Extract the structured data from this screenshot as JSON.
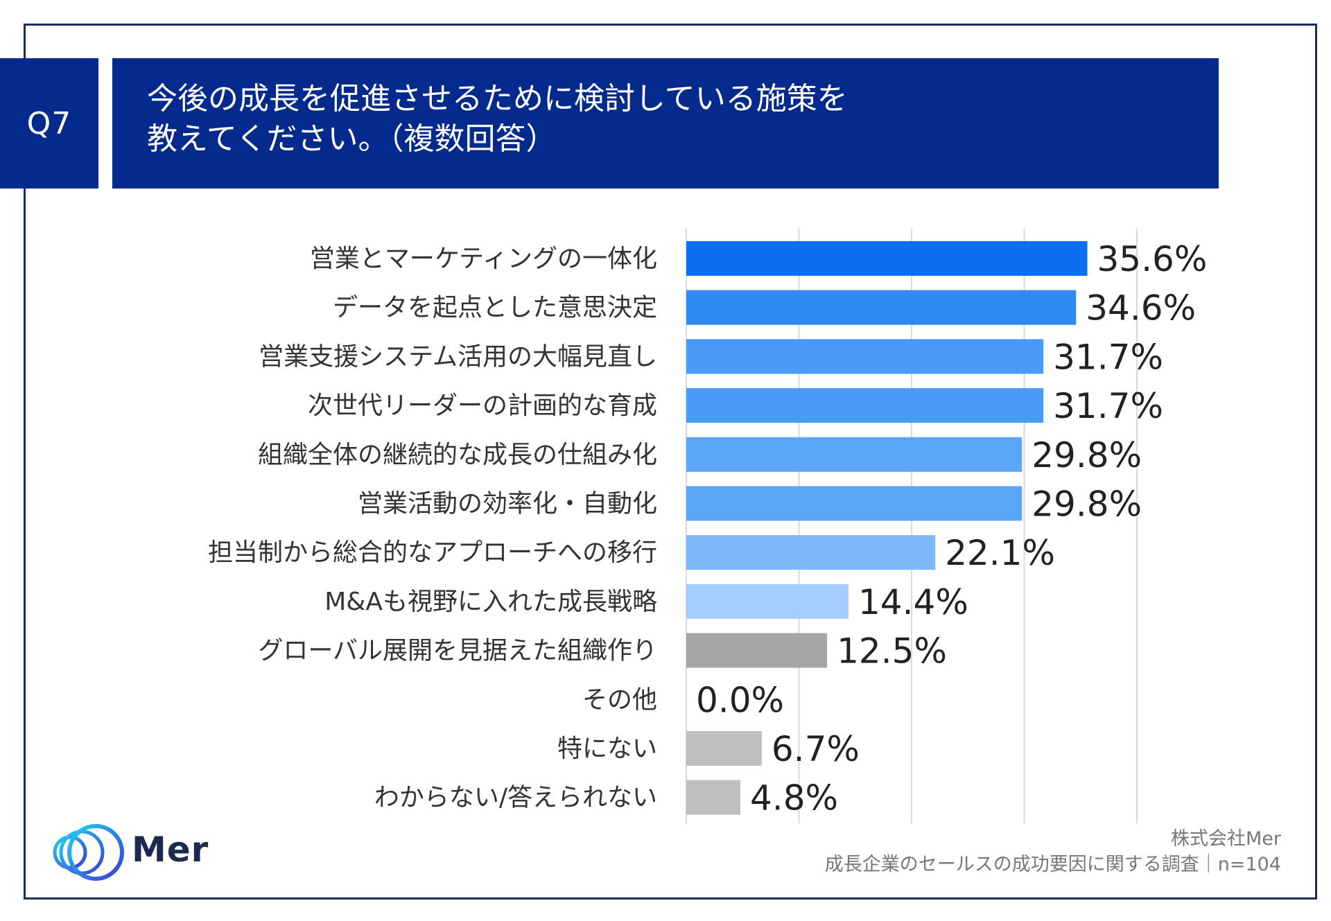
{
  "question": {
    "label": "Q7",
    "title_line1": "今後の成長を促進させるために検討している施策を",
    "title_line2": "教えてください。（複数回答）"
  },
  "chart_data": {
    "type": "bar",
    "orientation": "horizontal",
    "categories": [
      "営業とマーケティングの一体化",
      "データを起点とした意思決定",
      "営業支援システム活用の大幅見直し",
      "次世代リーダーの計画的な育成",
      "組織全体の継続的な成長の仕組み化",
      "営業活動の効率化・自動化",
      "担当制から総合的なアプローチへの移行",
      "M&Aも視野に入れた成長戦略",
      "グローバル展開を見据えた組織作り",
      "その他",
      "特にない",
      "わからない/答えられない"
    ],
    "values": [
      35.6,
      34.6,
      31.7,
      31.7,
      29.8,
      29.8,
      22.1,
      14.4,
      12.5,
      0.0,
      6.7,
      4.8
    ],
    "value_labels": [
      "35.6%",
      "34.6%",
      "31.7%",
      "31.7%",
      "29.8%",
      "29.8%",
      "22.1%",
      "14.4%",
      "12.5%",
      "0.0%",
      "6.7%",
      "4.8%"
    ],
    "bar_colors": [
      "#0a6ff0",
      "#2e8af5",
      "#4a9bf7",
      "#4a9bf7",
      "#5ca6f8",
      "#5ca6f8",
      "#7cb8fa",
      "#a2cdfc",
      "#a6a6a6",
      "#bfbfbf",
      "#bfbfbf",
      "#bfbfbf"
    ],
    "xlim": [
      0,
      40
    ],
    "grid": true,
    "xlabel": "",
    "ylabel": ""
  },
  "brand": {
    "logo_text": "Mer"
  },
  "footer": {
    "company": "株式会社Mer",
    "survey": "成長企業のセールスの成功要因に関する調査｜n=104"
  }
}
